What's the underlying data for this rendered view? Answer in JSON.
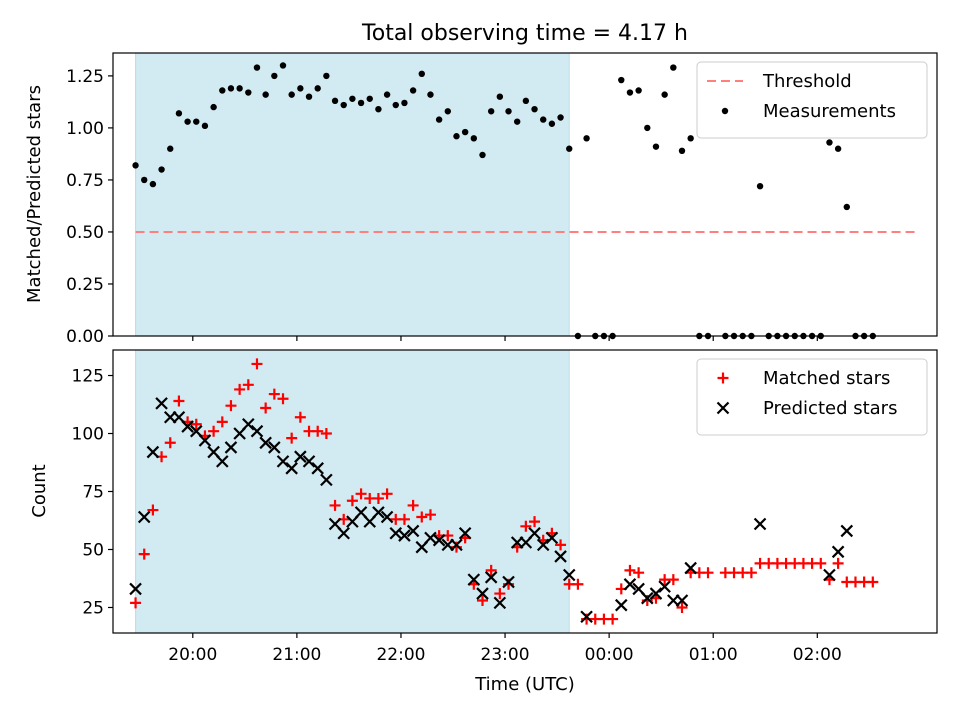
{
  "title": "Total observing time = 4.17 h",
  "colors": {
    "shade": "#add8e6",
    "threshold": "#ff7f7f",
    "measurement": "#000000",
    "matched": "#ff0000",
    "predicted": "#000000"
  },
  "chart_data": [
    {
      "type": "scatter",
      "ylabel": "Matched/Predicted stars",
      "ylim": [
        0,
        1.36
      ],
      "xlim": [
        "19:14",
        "03:09"
      ],
      "yticks": [
        {
          "v": 0.0,
          "label": "0.00"
        },
        {
          "v": 0.25,
          "label": "0.25"
        },
        {
          "v": 0.5,
          "label": "0.50"
        },
        {
          "v": 0.75,
          "label": "0.75"
        },
        {
          "v": 1.0,
          "label": "1.00"
        },
        {
          "v": 1.25,
          "label": "1.25"
        }
      ],
      "shaded_interval": [
        "19:27",
        "23:37"
      ],
      "legend": {
        "position": "top-right",
        "entries": [
          "Threshold",
          "Measurements"
        ]
      },
      "threshold": {
        "name": "Threshold",
        "y": 0.5,
        "x": [
          "19:27",
          "02:58"
        ]
      },
      "series": [
        {
          "name": "Measurements",
          "points": [
            [
              "19:27",
              0.82
            ],
            [
              "19:32",
              0.75
            ],
            [
              "19:37",
              0.73
            ],
            [
              "19:42",
              0.8
            ],
            [
              "19:47",
              0.9
            ],
            [
              "19:52",
              1.07
            ],
            [
              "19:57",
              1.03
            ],
            [
              "20:02",
              1.03
            ],
            [
              "20:07",
              1.01
            ],
            [
              "20:12",
              1.1
            ],
            [
              "20:17",
              1.18
            ],
            [
              "20:22",
              1.19
            ],
            [
              "20:27",
              1.19
            ],
            [
              "20:32",
              1.17
            ],
            [
              "20:37",
              1.29
            ],
            [
              "20:42",
              1.16
            ],
            [
              "20:47",
              1.25
            ],
            [
              "20:52",
              1.3
            ],
            [
              "20:57",
              1.16
            ],
            [
              "21:02",
              1.19
            ],
            [
              "21:07",
              1.15
            ],
            [
              "21:12",
              1.19
            ],
            [
              "21:17",
              1.25
            ],
            [
              "21:22",
              1.13
            ],
            [
              "21:27",
              1.11
            ],
            [
              "21:32",
              1.14
            ],
            [
              "21:37",
              1.12
            ],
            [
              "21:42",
              1.14
            ],
            [
              "21:47",
              1.09
            ],
            [
              "21:52",
              1.16
            ],
            [
              "21:57",
              1.11
            ],
            [
              "22:02",
              1.12
            ],
            [
              "22:07",
              1.18
            ],
            [
              "22:12",
              1.26
            ],
            [
              "22:17",
              1.16
            ],
            [
              "22:22",
              1.04
            ],
            [
              "22:27",
              1.08
            ],
            [
              "22:32",
              0.96
            ],
            [
              "22:37",
              0.98
            ],
            [
              "22:42",
              0.95
            ],
            [
              "22:47",
              0.87
            ],
            [
              "22:52",
              1.08
            ],
            [
              "22:57",
              1.15
            ],
            [
              "23:02",
              1.08
            ],
            [
              "23:07",
              1.03
            ],
            [
              "23:12",
              1.13
            ],
            [
              "23:17",
              1.09
            ],
            [
              "23:22",
              1.04
            ],
            [
              "23:27",
              1.02
            ],
            [
              "23:32",
              1.05
            ],
            [
              "23:37",
              0.9
            ],
            [
              "23:42",
              0.0
            ],
            [
              "23:47",
              0.95
            ],
            [
              "23:52",
              0.0
            ],
            [
              "23:57",
              0.0
            ],
            [
              "00:02",
              0.0
            ],
            [
              "00:07",
              1.23
            ],
            [
              "00:12",
              1.17
            ],
            [
              "00:17",
              1.18
            ],
            [
              "00:22",
              1.0
            ],
            [
              "00:27",
              0.91
            ],
            [
              "00:32",
              1.16
            ],
            [
              "00:37",
              1.29
            ],
            [
              "00:42",
              0.89
            ],
            [
              "00:47",
              0.95
            ],
            [
              "00:52",
              0.0
            ],
            [
              "00:57",
              0.0
            ],
            [
              "01:07",
              0.0
            ],
            [
              "01:12",
              0.0
            ],
            [
              "01:17",
              0.0
            ],
            [
              "01:22",
              0.0
            ],
            [
              "01:27",
              0.72
            ],
            [
              "01:32",
              0.0
            ],
            [
              "01:37",
              0.0
            ],
            [
              "01:42",
              0.0
            ],
            [
              "01:47",
              0.0
            ],
            [
              "01:52",
              0.0
            ],
            [
              "01:57",
              0.0
            ],
            [
              "02:02",
              0.0
            ],
            [
              "02:07",
              0.93
            ],
            [
              "02:12",
              0.9
            ],
            [
              "02:17",
              0.62
            ],
            [
              "02:22",
              0.0
            ],
            [
              "02:27",
              0.0
            ],
            [
              "02:32",
              0.0
            ]
          ]
        }
      ]
    },
    {
      "type": "scatter",
      "xlabel": "Time (UTC)",
      "ylabel": "Count",
      "ylim": [
        14,
        136
      ],
      "xlim": [
        "19:14",
        "03:09"
      ],
      "yticks": [
        {
          "v": 25,
          "label": "25"
        },
        {
          "v": 50,
          "label": "50"
        },
        {
          "v": 75,
          "label": "75"
        },
        {
          "v": 100,
          "label": "100"
        },
        {
          "v": 125,
          "label": "125"
        }
      ],
      "xticks": [
        {
          "t": "20:00",
          "label": "20:00"
        },
        {
          "t": "21:00",
          "label": "21:00"
        },
        {
          "t": "22:00",
          "label": "22:00"
        },
        {
          "t": "23:00",
          "label": "23:00"
        },
        {
          "t": "00:00",
          "label": "00:00"
        },
        {
          "t": "01:00",
          "label": "01:00"
        },
        {
          "t": "02:00",
          "label": "02:00"
        }
      ],
      "shaded_interval": [
        "19:27",
        "23:37"
      ],
      "legend": {
        "position": "top-right",
        "entries": [
          "Matched stars",
          "Predicted stars"
        ]
      },
      "series": [
        {
          "name": "Matched stars",
          "marker": "plus",
          "points": [
            [
              "19:27",
              27
            ],
            [
              "19:32",
              48
            ],
            [
              "19:37",
              67
            ],
            [
              "19:42",
              90
            ],
            [
              "19:47",
              96
            ],
            [
              "19:52",
              114
            ],
            [
              "19:57",
              105
            ],
            [
              "20:02",
              104
            ],
            [
              "20:07",
              99
            ],
            [
              "20:12",
              101
            ],
            [
              "20:17",
              105
            ],
            [
              "20:22",
              112
            ],
            [
              "20:27",
              119
            ],
            [
              "20:32",
              121
            ],
            [
              "20:37",
              130
            ],
            [
              "20:42",
              111
            ],
            [
              "20:47",
              117
            ],
            [
              "20:52",
              115
            ],
            [
              "20:57",
              98
            ],
            [
              "21:02",
              107
            ],
            [
              "21:07",
              101
            ],
            [
              "21:12",
              101
            ],
            [
              "21:17",
              100
            ],
            [
              "21:22",
              69
            ],
            [
              "21:27",
              63
            ],
            [
              "21:32",
              71
            ],
            [
              "21:37",
              74
            ],
            [
              "21:42",
              72
            ],
            [
              "21:47",
              72
            ],
            [
              "21:52",
              74
            ],
            [
              "21:57",
              63
            ],
            [
              "22:02",
              63
            ],
            [
              "22:07",
              69
            ],
            [
              "22:12",
              64
            ],
            [
              "22:17",
              65
            ],
            [
              "22:22",
              56
            ],
            [
              "22:27",
              56
            ],
            [
              "22:32",
              51
            ],
            [
              "22:37",
              55
            ],
            [
              "22:42",
              35
            ],
            [
              "22:47",
              28
            ],
            [
              "22:52",
              41
            ],
            [
              "22:57",
              31
            ],
            [
              "23:02",
              35
            ],
            [
              "23:07",
              51
            ],
            [
              "23:12",
              60
            ],
            [
              "23:17",
              62
            ],
            [
              "23:22",
              54
            ],
            [
              "23:27",
              57
            ],
            [
              "23:32",
              52
            ],
            [
              "23:37",
              35
            ],
            [
              "23:42",
              35
            ],
            [
              "23:47",
              20
            ],
            [
              "23:52",
              20
            ],
            [
              "23:57",
              20
            ],
            [
              "00:02",
              20
            ],
            [
              "00:07",
              33
            ],
            [
              "00:12",
              41
            ],
            [
              "00:17",
              40
            ],
            [
              "00:22",
              28
            ],
            [
              "00:27",
              29
            ],
            [
              "00:32",
              37
            ],
            [
              "00:37",
              37
            ],
            [
              "00:42",
              25
            ],
            [
              "00:47",
              40
            ],
            [
              "00:52",
              40
            ],
            [
              "00:57",
              40
            ],
            [
              "01:07",
              40
            ],
            [
              "01:12",
              40
            ],
            [
              "01:17",
              40
            ],
            [
              "01:22",
              40
            ],
            [
              "01:27",
              44
            ],
            [
              "01:32",
              44
            ],
            [
              "01:37",
              44
            ],
            [
              "01:42",
              44
            ],
            [
              "01:47",
              44
            ],
            [
              "01:52",
              44
            ],
            [
              "01:57",
              44
            ],
            [
              "02:02",
              44
            ],
            [
              "02:07",
              37
            ],
            [
              "02:12",
              44
            ],
            [
              "02:17",
              36
            ],
            [
              "02:22",
              36
            ],
            [
              "02:27",
              36
            ],
            [
              "02:32",
              36
            ]
          ]
        },
        {
          "name": "Predicted stars",
          "marker": "x",
          "points": [
            [
              "19:27",
              33
            ],
            [
              "19:32",
              64
            ],
            [
              "19:37",
              92
            ],
            [
              "19:42",
              113
            ],
            [
              "19:47",
              107
            ],
            [
              "19:52",
              107
            ],
            [
              "19:57",
              103
            ],
            [
              "20:02",
              101
            ],
            [
              "20:07",
              97
            ],
            [
              "20:12",
              92
            ],
            [
              "20:17",
              88
            ],
            [
              "20:22",
              94
            ],
            [
              "20:27",
              100
            ],
            [
              "20:32",
              104
            ],
            [
              "20:37",
              101
            ],
            [
              "20:42",
              96
            ],
            [
              "20:47",
              94
            ],
            [
              "20:52",
              88
            ],
            [
              "20:57",
              85
            ],
            [
              "21:02",
              90
            ],
            [
              "21:07",
              88
            ],
            [
              "21:12",
              85
            ],
            [
              "21:17",
              80
            ],
            [
              "21:22",
              61
            ],
            [
              "21:27",
              57
            ],
            [
              "21:32",
              62
            ],
            [
              "21:37",
              66
            ],
            [
              "21:42",
              62
            ],
            [
              "21:47",
              66
            ],
            [
              "21:52",
              64
            ],
            [
              "21:57",
              57
            ],
            [
              "22:02",
              56
            ],
            [
              "22:07",
              58
            ],
            [
              "22:12",
              51
            ],
            [
              "22:17",
              55
            ],
            [
              "22:22",
              54
            ],
            [
              "22:27",
              52
            ],
            [
              "22:32",
              52
            ],
            [
              "22:37",
              57
            ],
            [
              "22:42",
              37
            ],
            [
              "22:47",
              31
            ],
            [
              "22:52",
              38
            ],
            [
              "22:57",
              27
            ],
            [
              "23:02",
              36
            ],
            [
              "23:07",
              53
            ],
            [
              "23:12",
              53
            ],
            [
              "23:17",
              57
            ],
            [
              "23:22",
              52
            ],
            [
              "23:27",
              55
            ],
            [
              "23:32",
              47
            ],
            [
              "23:37",
              39
            ],
            [
              "23:47",
              21
            ],
            [
              "00:07",
              26
            ],
            [
              "00:12",
              35
            ],
            [
              "00:17",
              33
            ],
            [
              "00:22",
              29
            ],
            [
              "00:27",
              31
            ],
            [
              "00:32",
              34
            ],
            [
              "00:37",
              28
            ],
            [
              "00:42",
              28
            ],
            [
              "00:47",
              42
            ],
            [
              "01:27",
              61
            ],
            [
              "02:07",
              39
            ],
            [
              "02:12",
              49
            ],
            [
              "02:17",
              58
            ]
          ]
        }
      ]
    }
  ]
}
